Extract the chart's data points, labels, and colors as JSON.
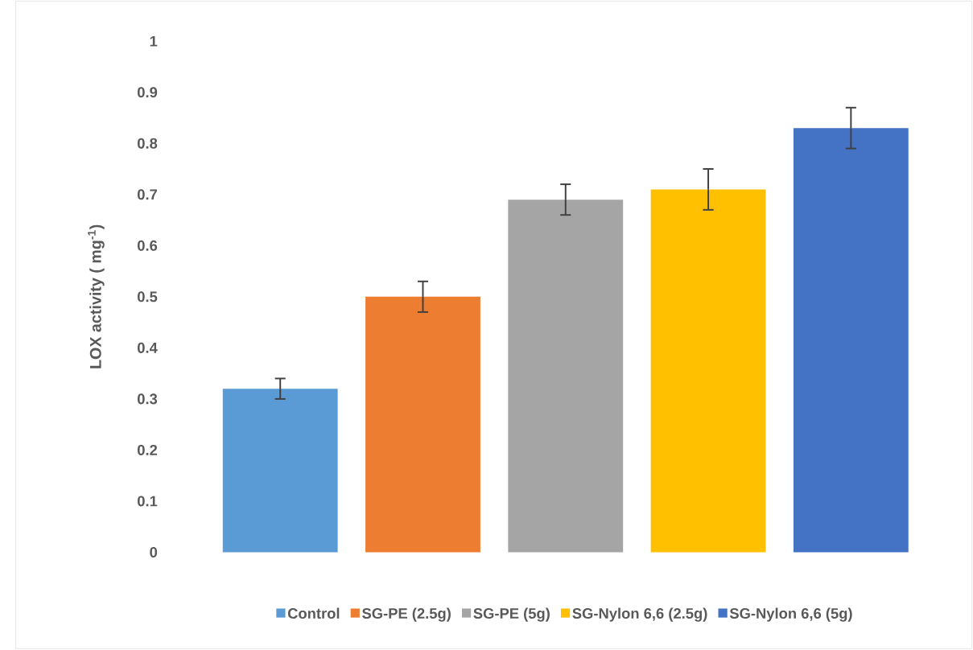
{
  "chart_data": {
    "type": "bar",
    "ylabel": "LOX activity ( mg$^{-1}$)",
    "categories": [
      null
    ],
    "series": [
      {
        "name": "Control",
        "color": "#5b9bd5",
        "values": [
          0.32
        ],
        "errors": [
          0.02
        ]
      },
      {
        "name": "SG-PE (2.5g)",
        "color": "#ed7d31",
        "values": [
          0.5
        ],
        "errors": [
          0.03
        ]
      },
      {
        "name": "SG-PE (5g)",
        "color": "#a5a5a5",
        "values": [
          0.69
        ],
        "errors": [
          0.03
        ]
      },
      {
        "name": "SG-Nylon 6,6 (2.5g)",
        "color": "#ffc000",
        "values": [
          0.71
        ],
        "errors": [
          0.04
        ]
      },
      {
        "name": "SG-Nylon 6,6 (5g)",
        "color": "#4472c4",
        "values": [
          0.83
        ],
        "errors": [
          0.04
        ]
      }
    ],
    "ylim": [
      0,
      1
    ],
    "yticks": [
      0,
      0.1,
      0.2,
      0.3,
      0.4,
      0.5,
      0.6,
      0.7,
      0.8,
      0.9,
      1
    ],
    "grid": false,
    "legend": "bottom"
  }
}
